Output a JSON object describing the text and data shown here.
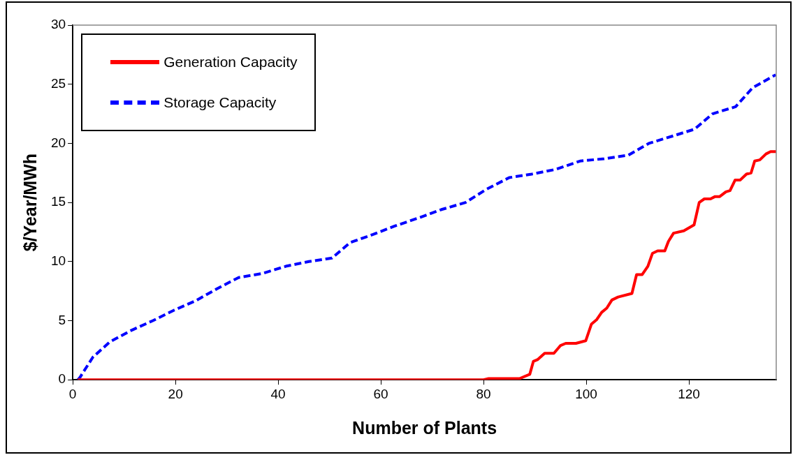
{
  "chart_data": {
    "type": "line",
    "xlabel": "Number of Plants",
    "ylabel": "$/Year/MWh",
    "xlim": [
      0,
      137
    ],
    "xticks": [
      0,
      20,
      40,
      60,
      80,
      100,
      120
    ],
    "ylim": [
      0,
      30
    ],
    "yticks": [
      0,
      5,
      10,
      15,
      20,
      25,
      30
    ],
    "grid": false,
    "legend": "top left",
    "marker": "none",
    "series": [
      {
        "name": "Generation Capacity",
        "color": "#ff0000",
        "line_style": "solid",
        "x": [
          1,
          80,
          81,
          87,
          89,
          89.7,
          90.5,
          91.9,
          93.7,
          95,
          96,
          98,
          99.9,
          101,
          102,
          103,
          104,
          105,
          106.2,
          108.9,
          109.8,
          110.9,
          112,
          112.9,
          113.9,
          115.3,
          116,
          117,
          119,
          121,
          122,
          123,
          124.2,
          125.1,
          126,
          127.2,
          128,
          129,
          130,
          131.2,
          132.1,
          132.8,
          133.8,
          135,
          135.9,
          137
        ],
        "values": [
          0,
          0,
          0.1,
          0.1,
          0.46,
          1.55,
          1.7,
          2.24,
          2.24,
          2.9,
          3.08,
          3.08,
          3.3,
          4.7,
          5.07,
          5.7,
          6.06,
          6.75,
          7.0,
          7.3,
          8.9,
          8.9,
          9.6,
          10.7,
          10.9,
          10.9,
          11.7,
          12.4,
          12.6,
          13.1,
          15.0,
          15.3,
          15.3,
          15.5,
          15.5,
          15.9,
          16.0,
          16.9,
          16.9,
          17.4,
          17.5,
          18.5,
          18.6,
          19.1,
          19.3,
          19.3
        ]
      },
      {
        "name": "Storage Capacity",
        "color": "#0000ff",
        "line_style": "dashed",
        "x": [
          1,
          1.4,
          3.9,
          7.2,
          11.5,
          15.6,
          19.8,
          24,
          28.1,
          32.3,
          37,
          41.5,
          46,
          50.5,
          54,
          58.5,
          62.7,
          67.4,
          71.8,
          76.5,
          80.5,
          85,
          89.4,
          94.1,
          98.8,
          103.5,
          108.2,
          112.2,
          116.7,
          121.1,
          124.6,
          129.1,
          132.4,
          136.9
        ],
        "values": [
          0,
          0.2,
          1.9,
          3.2,
          4.2,
          5.0,
          5.9,
          6.7,
          7.7,
          8.65,
          9.0,
          9.6,
          10.0,
          10.3,
          11.6,
          12.3,
          13.0,
          13.7,
          14.4,
          15.0,
          16.1,
          17.1,
          17.4,
          17.8,
          18.5,
          18.7,
          19.0,
          20.0,
          20.6,
          21.2,
          22.5,
          23.1,
          24.7,
          25.8
        ]
      }
    ]
  }
}
